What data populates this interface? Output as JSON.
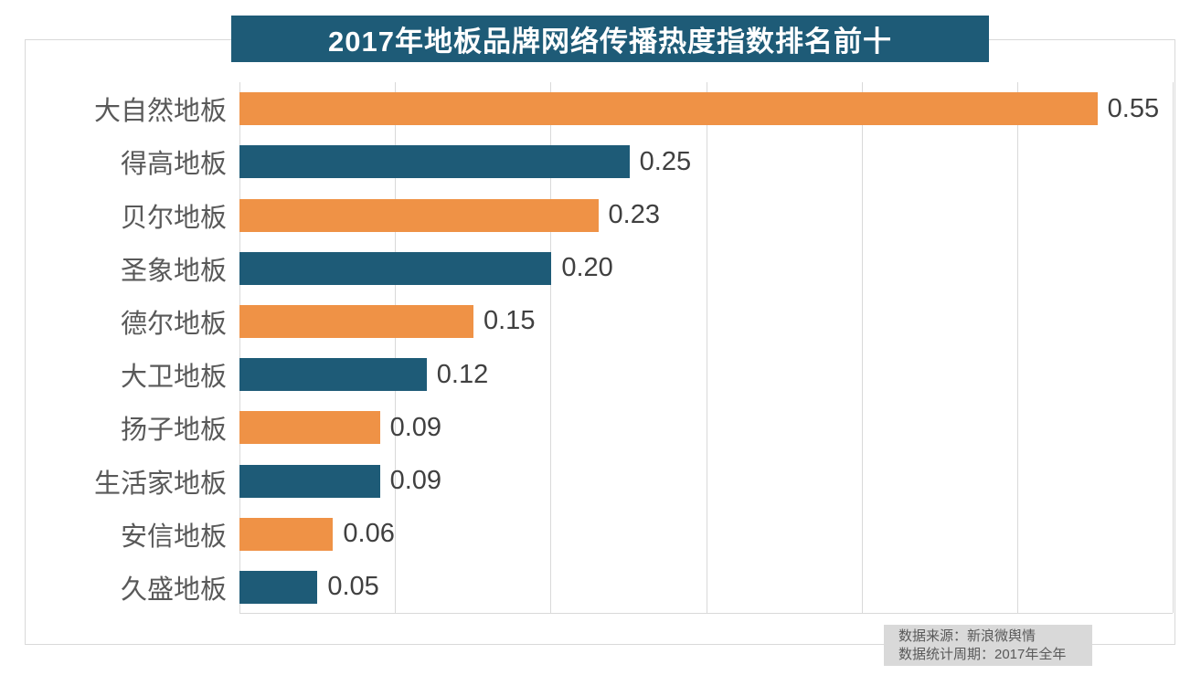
{
  "title": "2017年地板品牌网络传播热度指数排名前十",
  "chart_data": {
    "type": "bar",
    "orientation": "horizontal",
    "title": "2017年地板品牌网络传播热度指数排名前十",
    "categories": [
      "大自然地板",
      "得高地板",
      "贝尔地板",
      "圣象地板",
      "德尔地板",
      "大卫地板",
      "扬子地板",
      "生活家地板",
      "安信地板",
      "久盛地板"
    ],
    "values": [
      0.55,
      0.25,
      0.23,
      0.2,
      0.15,
      0.12,
      0.09,
      0.09,
      0.06,
      0.05
    ],
    "value_labels": [
      "0.55",
      "0.25",
      "0.23",
      "0.20",
      "0.15",
      "0.12",
      "0.09",
      "0.09",
      "0.06",
      "0.05"
    ],
    "xlabel": "",
    "ylabel": "",
    "xlim": [
      0,
      0.6
    ],
    "gridline_step": 0.1,
    "gridline_count": 7,
    "grid": "vertical-lines-on",
    "legend": "none",
    "bar_color_pattern": "alternating",
    "series_colors": [
      "#ef9246",
      "#1e5b77"
    ]
  },
  "footer": {
    "source_line": "数据来源：新浪微舆情",
    "period_line": "数据统计周期：2017年全年"
  },
  "colors": {
    "title_bg": "#1e5b77",
    "title_text": "#ffffff",
    "orange_bar": "#ef9246",
    "blue_bar": "#1e5b77",
    "frame_border": "#d9d9d9",
    "gridline": "#d9d9d9",
    "category_text": "#595959",
    "value_text": "#404040",
    "footer_bg": "#d9d9d9",
    "footer_text": "#595959"
  }
}
